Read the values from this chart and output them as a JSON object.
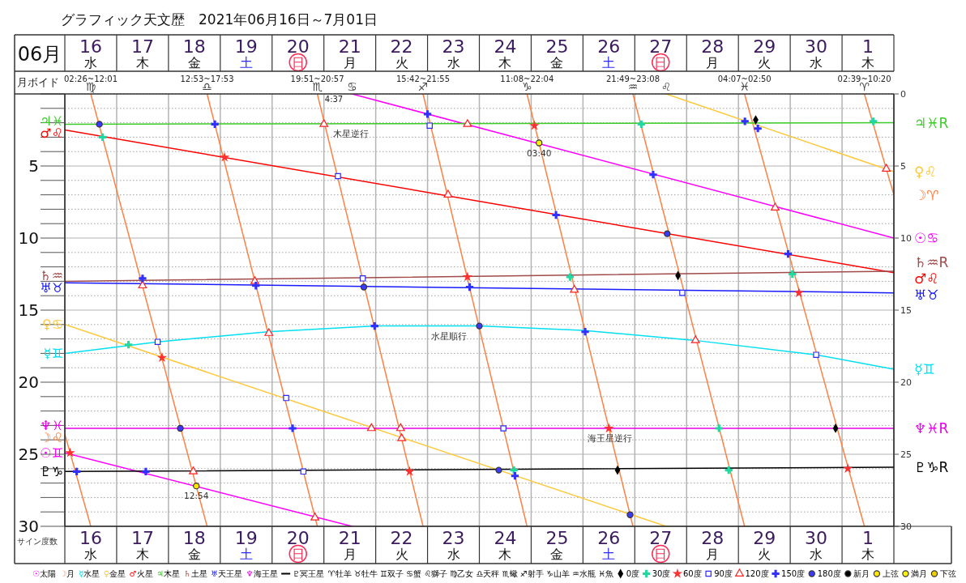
{
  "chart_data": {
    "type": "line",
    "title": "グラフィック天文歴　2021年06月16日～7月01日",
    "x2label": "06月",
    "ylabel": "サイン度数",
    "xlim": [
      "2021-06-16T00:00",
      "2021-07-02T00:00"
    ],
    "x2lim": [
      "2021-06-16T00:00",
      "2021-07-02T00:00"
    ],
    "xticks": [
      {
        "value": "2021-06-16T00:00",
        "label": null
      },
      {
        "value": "2021-06-16T12:00",
        "label": "16\n水"
      },
      {
        "value": "2021-06-17T00:00",
        "label": null
      },
      {
        "value": "2021-06-17T12:00",
        "label": "17\n木"
      },
      {
        "value": "2021-06-18T00:00",
        "label": null
      },
      {
        "value": "2021-06-18T12:00",
        "label": "18\n金"
      },
      {
        "value": "2021-06-19T00:00",
        "label": null
      },
      {
        "value": "2021-06-19T12:00",
        "label": "19\n土"
      },
      {
        "value": "2021-06-20T00:00",
        "label": null
      },
      {
        "value": "2021-06-20T12:00",
        "label": "20\n日"
      },
      {
        "value": "2021-06-21T00:00",
        "label": null
      },
      {
        "value": "2021-06-21T12:00",
        "label": "21\n月"
      },
      {
        "value": "2021-06-22T00:00",
        "label": null
      },
      {
        "value": "2021-06-22T12:00",
        "label": "22\n火"
      },
      {
        "value": "2021-06-23T00:00",
        "label": null
      },
      {
        "value": "2021-06-23T12:00",
        "label": "23\n水"
      },
      {
        "value": "2021-06-24T00:00",
        "label": null
      },
      {
        "value": "2021-06-24T12:00",
        "label": "24\n木"
      },
      {
        "value": "2021-06-25T00:00",
        "label": null
      },
      {
        "value": "2021-06-25T12:00",
        "label": "25\n金"
      },
      {
        "value": "2021-06-26T00:00",
        "label": null
      },
      {
        "value": "2021-06-26T12:00",
        "label": "26\n土"
      },
      {
        "value": "2021-06-27T00:00",
        "label": null
      },
      {
        "value": "2021-06-27T12:00",
        "label": "27\n日"
      },
      {
        "value": "2021-06-28T00:00",
        "label": null
      },
      {
        "value": "2021-06-28T12:00",
        "label": "28\n月"
      },
      {
        "value": "2021-06-29T00:00",
        "label": null
      },
      {
        "value": "2021-06-29T12:00",
        "label": "29\n火"
      },
      {
        "value": "2021-06-30T00:00",
        "label": null
      },
      {
        "value": "2021-06-30T12:00",
        "label": "30\n水"
      },
      {
        "value": "2021-07-01T00:00",
        "label": null
      },
      {
        "value": "2021-07-01T12:00",
        "label": "1\n木"
      },
      {
        "value": "2021-07-02T00:00",
        "label": null
      }
    ],
    "x2ticks": [
      {
        "value": "2021-06-16T00:00",
        "label": null
      },
      {
        "value": "2021-06-16T12:00",
        "label": "16\n水"
      },
      {
        "value": "2021-06-17T00:00",
        "label": null
      },
      {
        "value": "2021-06-17T12:00",
        "label": "17\n木"
      },
      {
        "value": "2021-06-18T00:00",
        "label": null
      },
      {
        "value": "2021-06-18T12:00",
        "label": "18\n金"
      },
      {
        "value": "2021-06-19T00:00",
        "label": null
      },
      {
        "value": "2021-06-19T12:00",
        "label": "19\n土"
      },
      {
        "value": "2021-06-20T00:00",
        "label": null
      },
      {
        "value": "2021-06-20T12:00",
        "label": "20\n日"
      },
      {
        "value": "2021-06-21T00:00",
        "label": null
      },
      {
        "value": "2021-06-21T12:00",
        "label": "21\n月"
      },
      {
        "value": "2021-06-22T00:00",
        "label": null
      },
      {
        "value": "2021-06-22T12:00",
        "label": "22\n火"
      },
      {
        "value": "2021-06-23T00:00",
        "label": null
      },
      {
        "value": "2021-06-23T12:00",
        "label": "23\n水"
      },
      {
        "value": "2021-06-24T00:00",
        "label": null
      },
      {
        "value": "2021-06-24T12:00",
        "label": "24\n木"
      },
      {
        "value": "2021-06-25T00:00",
        "label": null
      },
      {
        "value": "2021-06-25T12:00",
        "label": "25\n金"
      },
      {
        "value": "2021-06-26T00:00",
        "label": null
      },
      {
        "value": "2021-06-26T12:00",
        "label": "26\n土"
      },
      {
        "value": "2021-06-27T00:00",
        "label": null
      },
      {
        "value": "2021-06-27T12:00",
        "label": "27\n日"
      },
      {
        "value": "2021-06-28T00:00",
        "label": null
      },
      {
        "value": "2021-06-28T12:00",
        "label": "28\n月"
      },
      {
        "value": "2021-06-29T00:00",
        "label": null
      },
      {
        "value": "2021-06-29T12:00",
        "label": "29\n火"
      },
      {
        "value": "2021-06-30T00:00",
        "label": null
      },
      {
        "value": "2021-06-30T12:00",
        "label": "30\n水"
      },
      {
        "value": "2021-07-01T00:00",
        "label": null
      },
      {
        "value": "2021-07-01T12:00",
        "label": "1\n木"
      },
      {
        "value": "2021-07-02T00:00",
        "label": null
      }
    ],
    "ylim": [
      30,
      0
    ],
    "yticks": [
      {
        "value": 0,
        "label": null
      },
      {
        "value": 1,
        "label": null
      },
      {
        "value": 2,
        "label": null
      },
      {
        "value": 3,
        "label": null
      },
      {
        "value": 4,
        "label": null
      },
      5,
      {
        "value": 6,
        "label": null
      },
      {
        "value": 7,
        "label": null
      },
      {
        "value": 8,
        "label": null
      },
      {
        "value": 9,
        "label": null
      },
      10,
      {
        "value": 11,
        "label": null
      },
      {
        "value": 12,
        "label": null
      },
      {
        "value": 13,
        "label": null
      },
      {
        "value": 14,
        "label": null
      },
      15,
      {
        "value": 16,
        "label": null
      },
      {
        "value": 17,
        "label": null
      },
      {
        "value": 18,
        "label": null
      },
      {
        "value": 19,
        "label": null
      },
      20,
      {
        "value": 21,
        "label": null
      },
      {
        "value": 22,
        "label": null
      },
      {
        "value": 23,
        "label": null
      },
      {
        "value": 24,
        "label": null
      },
      25,
      {
        "value": 26,
        "label": null
      },
      {
        "value": 27,
        "label": null
      },
      {
        "value": 28,
        "label": null
      },
      {
        "value": 29,
        "label": null
      },
      30
    ],
    "y2lim": [
      30,
      0
    ],
    "y2ticks": [
      0,
      5,
      10,
      15,
      20,
      25,
      30
    ],
    "grid": true,
    "legend": "bottom",
    "series": [
      {
        "name": "☉太陽",
        "color": "#ff00ff",
        "x": [
          "2021-06-16T00:00",
          "2021-06-21T13:00"
        ],
        "values": [
          24.9,
          30
        ],
        "value_labels": [
          "☉♊",
          null
        ]
      },
      {
        "color": "#ff00ff",
        "x": [
          "2021-06-21T13:00",
          "2021-07-02T00:00"
        ],
        "values": [
          0,
          10.0
        ],
        "value_labels": [
          "♋",
          "☉♋"
        ]
      },
      {
        "name": "☽月",
        "color": "#ff8040",
        "x": [
          "2021-06-16T00:00",
          "2021-06-16T12:01"
        ],
        "values": [
          23.6,
          30
        ],
        "value_labels": [
          "☽♌",
          null
        ]
      },
      {
        "color": "#ff8040",
        "x": [
          "2021-06-16T12:01",
          "2021-06-18T17:53"
        ],
        "values": [
          0,
          30
        ],
        "value_labels": [
          "♍",
          null
        ]
      },
      {
        "color": "#ff8040",
        "x": [
          "2021-06-18T17:53",
          "2021-06-20T20:57"
        ],
        "values": [
          0,
          30
        ],
        "value_labels": [
          "♎",
          null
        ]
      },
      {
        "color": "#ff8040",
        "x": [
          "2021-06-20T20:57",
          "2021-06-22T21:55"
        ],
        "values": [
          0,
          30
        ],
        "value_labels": [
          "♏",
          null
        ]
      },
      {
        "color": "#ff8040",
        "x": [
          "2021-06-22T21:55",
          "2021-06-24T22:04"
        ],
        "values": [
          0,
          30
        ],
        "value_labels": [
          "♐",
          null
        ]
      },
      {
        "color": "#ff8040",
        "x": [
          "2021-06-24T22:04",
          "2021-06-26T23:08"
        ],
        "values": [
          0,
          30
        ],
        "value_labels": [
          "♑",
          null
        ]
      },
      {
        "color": "#ff8040",
        "x": [
          "2021-06-26T23:08",
          "2021-06-29T02:50"
        ],
        "values": [
          0,
          30
        ],
        "value_labels": [
          "♒",
          null
        ]
      },
      {
        "color": "#ff8040",
        "x": [
          "2021-06-29T02:50",
          "2021-07-01T10:20"
        ],
        "values": [
          0,
          30
        ],
        "value_labels": [
          "♓",
          null
        ]
      },
      {
        "color": "#ff8040",
        "x": [
          "2021-07-01T10:20",
          "2021-07-02T00:00"
        ],
        "values": [
          0,
          7.0
        ],
        "value_labels": [
          "♈",
          "☽♈"
        ]
      },
      {
        "name": "☿水星",
        "color": "#00e0f0",
        "x": [
          "2021-06-16T00:00",
          "2021-06-17T19:00",
          "2021-06-19T22:00",
          "2021-06-22T00:00",
          "2021-06-24T00:00",
          "2021-06-26T00:00",
          "2021-06-28T04:00",
          "2021-06-30T12:00",
          "2021-07-02T00:00"
        ],
        "values": [
          18.0,
          17.2,
          16.5,
          16.1,
          16.1,
          16.4,
          17.1,
          18.1,
          19.1
        ],
        "value_labels": [
          "☿♊",
          null,
          null,
          null,
          null,
          null,
          null,
          null,
          "☿♊"
        ]
      },
      {
        "name": "♀金星",
        "color": "#ffc83c",
        "x": [
          "2021-06-16T00:00",
          "2021-06-27T14:30"
        ],
        "values": [
          16.0,
          30
        ],
        "value_labels": [
          "♀♋",
          null
        ]
      },
      {
        "color": "#ffc83c",
        "x": [
          "2021-06-27T14:30",
          "2021-07-02T00:00"
        ],
        "values": [
          0,
          5.4
        ],
        "value_labels": [
          "♌",
          "♀♌"
        ]
      },
      {
        "name": "♂火星",
        "color": "#ff0000",
        "x": [
          "2021-06-16T00:00",
          "2021-07-02T00:00"
        ],
        "values": [
          2.5,
          12.4
        ],
        "value_labels": [
          "♂♌",
          "♂♌"
        ]
      },
      {
        "name": "♃木星",
        "color": "#3ccc28",
        "x": [
          "2021-06-16T00:00",
          "2021-07-02T00:00"
        ],
        "values": [
          2.1,
          2.0
        ],
        "value_labels": [
          "♃♓",
          "♃♓R"
        ]
      },
      {
        "name": "♄土星",
        "color": "#a04a4a",
        "x": [
          "2021-06-16T00:00",
          "2021-07-02T00:00"
        ],
        "values": [
          13.0,
          12.3
        ],
        "value_labels": [
          "♄♒",
          "♄♒R"
        ]
      },
      {
        "name": "♅天王星",
        "color": "#1a1aff",
        "x": [
          "2021-06-16T00:00",
          "2021-07-02T00:00"
        ],
        "values": [
          13.1,
          13.8
        ],
        "value_labels": [
          "♅♉",
          "♅♉"
        ]
      },
      {
        "name": "♆海王星",
        "color": "#e600e6",
        "x": [
          "2021-06-16T00:00",
          "2021-07-02T00:00"
        ],
        "values": [
          23.2,
          23.2
        ],
        "value_labels": [
          "♆♓",
          "♆♓R"
        ]
      },
      {
        "name": "♇冥王星",
        "color": "#000000",
        "x": [
          "2021-06-16T00:00",
          "2021-07-02T00:00"
        ],
        "values": [
          26.2,
          25.9
        ],
        "value_labels": [
          "♇♑",
          "♇♑R"
        ]
      },
      {
        "name": "0度",
        "type": "scatter",
        "marker": "diamond",
        "color": "#000000",
        "x": [
          "2021-06-26T16:00",
          "2021-06-27T20:00",
          "2021-06-29T08:00",
          "2021-06-30T21:00"
        ],
        "values": [
          26.1,
          12.6,
          1.8,
          23.2
        ]
      },
      {
        "name": "30度",
        "type": "scatter",
        "marker": "cross",
        "color": "#20d8a0",
        "x": [
          "2021-06-16T17:30",
          "2021-06-17T05:30",
          "2021-06-24T16:00",
          "2021-06-25T18:00",
          "2021-06-27T03:00",
          "2021-06-28T15:00",
          "2021-06-28T19:30",
          "2021-06-30T01:00",
          "2021-07-01T14:30"
        ],
        "values": [
          3.0,
          17.4,
          26.1,
          12.7,
          2.1,
          23.2,
          26.1,
          12.5,
          1.9
        ]
      },
      {
        "name": "60度",
        "type": "scatter",
        "marker": "star",
        "color": "#ff3030",
        "x": [
          "2021-06-16T02:26",
          "2021-06-17T21:00",
          "2021-06-19T02:00",
          "2021-06-22T15:42",
          "2021-06-23T18:30",
          "2021-06-25T01:30",
          "2021-06-26T12:00",
          "2021-06-30T04:00",
          "2021-07-01T02:39"
        ],
        "values": [
          24.9,
          18.3,
          4.4,
          26.2,
          12.7,
          2.2,
          23.2,
          13.8,
          26.0
        ]
      },
      {
        "name": "90度",
        "type": "scatter",
        "marker": "square",
        "color": "#2a2aff",
        "x": [
          "2021-06-17T19:00",
          "2021-06-20T06:30",
          "2021-06-20T14:30",
          "2021-06-21T06:30",
          "2021-06-21T18:00",
          "2021-06-23T01:00",
          "2021-06-24T11:08",
          "2021-06-27T22:00",
          "2021-06-30T12:00"
        ],
        "values": [
          17.2,
          21.1,
          26.2,
          5.7,
          12.8,
          2.2,
          23.2,
          13.8,
          18.1
        ]
      },
      {
        "name": "120度",
        "type": "scatter",
        "marker": "triangle",
        "color": "#ff2020",
        "x": [
          "2021-06-17T12:00",
          "2021-06-18T11:30",
          "2021-06-19T16:00",
          "2021-06-19T22:30",
          "2021-06-20T19:51",
          "2021-06-21T00:00",
          "2021-06-21T22:00",
          "2021-06-22T11:30",
          "2021-06-22T12:00",
          "2021-06-23T09:30",
          "2021-06-23T18:30",
          "2021-06-25T20:00",
          "2021-06-28T04:07",
          "2021-06-29T17:00",
          "2021-07-01T20:30"
        ],
        "values": [
          13.3,
          26.2,
          13.0,
          16.6,
          29.4,
          2.1,
          23.2,
          23.2,
          23.9,
          7.0,
          2.1,
          13.6,
          17.1,
          7.9,
          5.2
        ]
      },
      {
        "name": "150度",
        "type": "scatter",
        "marker": "cross",
        "color": "#3030ff",
        "x": [
          "2021-06-16T05:30",
          "2021-06-17T12:00",
          "2021-06-17T13:30",
          "2021-06-18T21:30",
          "2021-06-19T16:30",
          "2021-06-20T09:30",
          "2021-06-21T23:30",
          "2021-06-23T00:00",
          "2021-06-23T19:30",
          "2021-06-24T16:30",
          "2021-06-25T11:30",
          "2021-06-26T01:00",
          "2021-06-27T08:30",
          "2021-06-29T03:00",
          "2021-06-29T09:00",
          "2021-06-29T23:00"
        ],
        "values": [
          26.2,
          12.8,
          26.2,
          2.1,
          13.3,
          23.2,
          16.1,
          1.4,
          13.4,
          26.5,
          8.4,
          16.5,
          5.6,
          1.9,
          2.4,
          11.1
        ]
      },
      {
        "name": "180度",
        "type": "scatter",
        "marker": "circle",
        "color": "#3a3aff",
        "x": [
          "2021-06-16T16:00",
          "2021-06-18T05:30",
          "2021-06-21T18:30",
          "2021-06-24T00:00",
          "2021-06-24T09:00",
          "2021-06-26T21:49",
          "2021-06-27T15:00"
        ],
        "values": [
          2.1,
          23.2,
          13.4,
          16.1,
          26.1,
          29.2,
          9.7
        ]
      },
      {
        "name": "新月",
        "type": "scatter",
        "marker": "circle",
        "color": "#000000"
      },
      {
        "name": "上弦",
        "type": "scatter",
        "marker": "circle",
        "color": "#ffe600",
        "x": [
          "2021-06-18T12:54"
        ],
        "values": [
          27.2
        ]
      },
      {
        "name": "満月",
        "type": "scatter",
        "marker": "circle",
        "color": "#fff000",
        "x": [
          "2021-06-25T03:40"
        ],
        "values": [
          3.4
        ]
      },
      {
        "name": "下弦",
        "type": "scatter",
        "marker": "circle",
        "color": "#f0d000"
      }
    ],
    "annotations": [
      "月ボイド",
      "♈牡羊 ♉牡牛 ♊双子 ♋蟹 ♌獅子 ♍乙女 ♎天秤 ♏蠍 ♐射手 ♑山羊 ♒水瓶 ♓魚",
      "4:37",
      {
        "text": "02:26~12:01",
        "x": "2021-06-16T12:01",
        "y": 0
      },
      {
        "text": "12:53~17:53",
        "x": "2021-06-18T17:53",
        "y": 0
      },
      {
        "text": "19:51~20:57",
        "x": "2021-06-20T20:57",
        "y": 0
      },
      {
        "text": "15:42~21:55",
        "x": "2021-06-22T21:55",
        "y": 0
      },
      {
        "text": "11:08~22:04",
        "x": "2021-06-24T22:04",
        "y": 0
      },
      {
        "text": "21:49~23:08",
        "x": "2021-06-26T23:08",
        "y": 0
      },
      {
        "text": "04:07~02:50",
        "x": "2021-06-29T02:50",
        "y": 0
      },
      {
        "text": "02:39~10:20",
        "x": "2021-07-01T10:20",
        "y": 0
      },
      {
        "text": "木星逆行",
        "x": "2021-06-21T12:30",
        "y": 2.1
      },
      {
        "text": "水星順行",
        "x": "2021-06-23T10:00",
        "y": 16.1
      },
      {
        "text": "海王星逆行",
        "x": "2021-06-26T12:30",
        "y": 23.2
      },
      {
        "text": "12:54",
        "x": "2021-06-18T12:54",
        "y": 27.2
      },
      {
        "text": "03:40",
        "x": "2021-06-25T03:40",
        "y": 3.4
      }
    ]
  }
}
